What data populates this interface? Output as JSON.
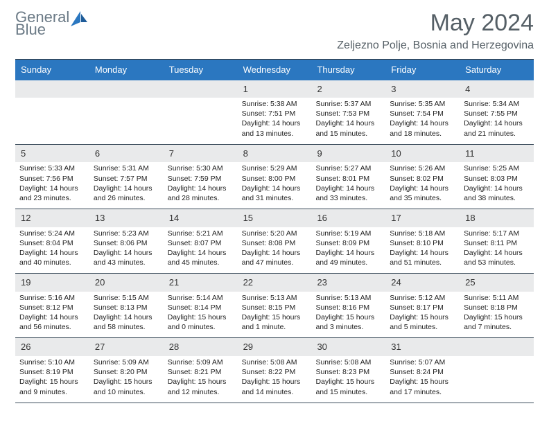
{
  "logo": {
    "word1": "General",
    "word2": "Blue"
  },
  "header": {
    "month_title": "May 2024",
    "location": "Zeljezno Polje, Bosnia and Herzegovina"
  },
  "colors": {
    "header_bg": "#2b77c0",
    "header_text": "#ffffff",
    "daynum_bg": "#e9eaeb",
    "logo_gray": "#6b7a86",
    "logo_blue": "#2b77c0",
    "title_gray": "#555f66",
    "rule": "#3a4b5a",
    "page_bg": "#ffffff"
  },
  "typography": {
    "title_fontsize_pt": 26,
    "location_fontsize_pt": 12,
    "dayhead_fontsize_pt": 10,
    "daynum_fontsize_pt": 10,
    "body_fontsize_pt": 8
  },
  "columns": [
    "Sunday",
    "Monday",
    "Tuesday",
    "Wednesday",
    "Thursday",
    "Friday",
    "Saturday"
  ],
  "weeks": [
    {
      "nums": [
        "",
        "",
        "",
        "1",
        "2",
        "3",
        "4"
      ],
      "cells": [
        null,
        null,
        null,
        {
          "sunrise": "Sunrise: 5:38 AM",
          "sunset": "Sunset: 7:51 PM",
          "d1": "Daylight: 14 hours",
          "d2": "and 13 minutes."
        },
        {
          "sunrise": "Sunrise: 5:37 AM",
          "sunset": "Sunset: 7:53 PM",
          "d1": "Daylight: 14 hours",
          "d2": "and 15 minutes."
        },
        {
          "sunrise": "Sunrise: 5:35 AM",
          "sunset": "Sunset: 7:54 PM",
          "d1": "Daylight: 14 hours",
          "d2": "and 18 minutes."
        },
        {
          "sunrise": "Sunrise: 5:34 AM",
          "sunset": "Sunset: 7:55 PM",
          "d1": "Daylight: 14 hours",
          "d2": "and 21 minutes."
        }
      ]
    },
    {
      "nums": [
        "5",
        "6",
        "7",
        "8",
        "9",
        "10",
        "11"
      ],
      "cells": [
        {
          "sunrise": "Sunrise: 5:33 AM",
          "sunset": "Sunset: 7:56 PM",
          "d1": "Daylight: 14 hours",
          "d2": "and 23 minutes."
        },
        {
          "sunrise": "Sunrise: 5:31 AM",
          "sunset": "Sunset: 7:57 PM",
          "d1": "Daylight: 14 hours",
          "d2": "and 26 minutes."
        },
        {
          "sunrise": "Sunrise: 5:30 AM",
          "sunset": "Sunset: 7:59 PM",
          "d1": "Daylight: 14 hours",
          "d2": "and 28 minutes."
        },
        {
          "sunrise": "Sunrise: 5:29 AM",
          "sunset": "Sunset: 8:00 PM",
          "d1": "Daylight: 14 hours",
          "d2": "and 31 minutes."
        },
        {
          "sunrise": "Sunrise: 5:27 AM",
          "sunset": "Sunset: 8:01 PM",
          "d1": "Daylight: 14 hours",
          "d2": "and 33 minutes."
        },
        {
          "sunrise": "Sunrise: 5:26 AM",
          "sunset": "Sunset: 8:02 PM",
          "d1": "Daylight: 14 hours",
          "d2": "and 35 minutes."
        },
        {
          "sunrise": "Sunrise: 5:25 AM",
          "sunset": "Sunset: 8:03 PM",
          "d1": "Daylight: 14 hours",
          "d2": "and 38 minutes."
        }
      ]
    },
    {
      "nums": [
        "12",
        "13",
        "14",
        "15",
        "16",
        "17",
        "18"
      ],
      "cells": [
        {
          "sunrise": "Sunrise: 5:24 AM",
          "sunset": "Sunset: 8:04 PM",
          "d1": "Daylight: 14 hours",
          "d2": "and 40 minutes."
        },
        {
          "sunrise": "Sunrise: 5:23 AM",
          "sunset": "Sunset: 8:06 PM",
          "d1": "Daylight: 14 hours",
          "d2": "and 43 minutes."
        },
        {
          "sunrise": "Sunrise: 5:21 AM",
          "sunset": "Sunset: 8:07 PM",
          "d1": "Daylight: 14 hours",
          "d2": "and 45 minutes."
        },
        {
          "sunrise": "Sunrise: 5:20 AM",
          "sunset": "Sunset: 8:08 PM",
          "d1": "Daylight: 14 hours",
          "d2": "and 47 minutes."
        },
        {
          "sunrise": "Sunrise: 5:19 AM",
          "sunset": "Sunset: 8:09 PM",
          "d1": "Daylight: 14 hours",
          "d2": "and 49 minutes."
        },
        {
          "sunrise": "Sunrise: 5:18 AM",
          "sunset": "Sunset: 8:10 PM",
          "d1": "Daylight: 14 hours",
          "d2": "and 51 minutes."
        },
        {
          "sunrise": "Sunrise: 5:17 AM",
          "sunset": "Sunset: 8:11 PM",
          "d1": "Daylight: 14 hours",
          "d2": "and 53 minutes."
        }
      ]
    },
    {
      "nums": [
        "19",
        "20",
        "21",
        "22",
        "23",
        "24",
        "25"
      ],
      "cells": [
        {
          "sunrise": "Sunrise: 5:16 AM",
          "sunset": "Sunset: 8:12 PM",
          "d1": "Daylight: 14 hours",
          "d2": "and 56 minutes."
        },
        {
          "sunrise": "Sunrise: 5:15 AM",
          "sunset": "Sunset: 8:13 PM",
          "d1": "Daylight: 14 hours",
          "d2": "and 58 minutes."
        },
        {
          "sunrise": "Sunrise: 5:14 AM",
          "sunset": "Sunset: 8:14 PM",
          "d1": "Daylight: 15 hours",
          "d2": "and 0 minutes."
        },
        {
          "sunrise": "Sunrise: 5:13 AM",
          "sunset": "Sunset: 8:15 PM",
          "d1": "Daylight: 15 hours",
          "d2": "and 1 minute."
        },
        {
          "sunrise": "Sunrise: 5:13 AM",
          "sunset": "Sunset: 8:16 PM",
          "d1": "Daylight: 15 hours",
          "d2": "and 3 minutes."
        },
        {
          "sunrise": "Sunrise: 5:12 AM",
          "sunset": "Sunset: 8:17 PM",
          "d1": "Daylight: 15 hours",
          "d2": "and 5 minutes."
        },
        {
          "sunrise": "Sunrise: 5:11 AM",
          "sunset": "Sunset: 8:18 PM",
          "d1": "Daylight: 15 hours",
          "d2": "and 7 minutes."
        }
      ]
    },
    {
      "nums": [
        "26",
        "27",
        "28",
        "29",
        "30",
        "31",
        ""
      ],
      "cells": [
        {
          "sunrise": "Sunrise: 5:10 AM",
          "sunset": "Sunset: 8:19 PM",
          "d1": "Daylight: 15 hours",
          "d2": "and 9 minutes."
        },
        {
          "sunrise": "Sunrise: 5:09 AM",
          "sunset": "Sunset: 8:20 PM",
          "d1": "Daylight: 15 hours",
          "d2": "and 10 minutes."
        },
        {
          "sunrise": "Sunrise: 5:09 AM",
          "sunset": "Sunset: 8:21 PM",
          "d1": "Daylight: 15 hours",
          "d2": "and 12 minutes."
        },
        {
          "sunrise": "Sunrise: 5:08 AM",
          "sunset": "Sunset: 8:22 PM",
          "d1": "Daylight: 15 hours",
          "d2": "and 14 minutes."
        },
        {
          "sunrise": "Sunrise: 5:08 AM",
          "sunset": "Sunset: 8:23 PM",
          "d1": "Daylight: 15 hours",
          "d2": "and 15 minutes."
        },
        {
          "sunrise": "Sunrise: 5:07 AM",
          "sunset": "Sunset: 8:24 PM",
          "d1": "Daylight: 15 hours",
          "d2": "and 17 minutes."
        },
        null
      ]
    }
  ]
}
